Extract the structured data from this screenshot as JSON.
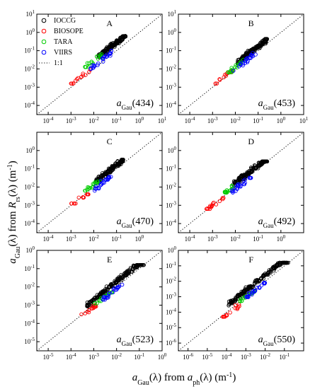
{
  "figure": {
    "xlabel": {
      "prefix": "a",
      "sub1": "Gau",
      "mid": "(λ) from ",
      "a2": "a",
      "sub2": "ph",
      "suffix": "(λ) (m",
      "exp": "-1",
      "end": ")"
    },
    "ylabel": {
      "prefix": "a",
      "sub1": "Gau",
      "mid": "(λ) from ",
      "R": "R",
      "sub2": "rs",
      "suffix": "(λ) (m",
      "exp": "-1",
      "end": ")"
    }
  },
  "legend": {
    "entries": [
      {
        "label": "IOCCG",
        "color": "#000000",
        "marker": "circle"
      },
      {
        "label": "BIOSOPE",
        "color": "#ff0000",
        "marker": "circle"
      },
      {
        "label": "TARA",
        "color": "#00cc00",
        "marker": "circle"
      },
      {
        "label": "VIIRS",
        "color": "#0000ff",
        "marker": "circle"
      },
      {
        "label": "1:1",
        "color": "#000000",
        "marker": "dotted-line"
      }
    ]
  },
  "chart_data": [
    {
      "type": "scatter",
      "panel": "A",
      "wavelength": "434",
      "xscale": "log",
      "yscale": "log",
      "xlim": [
        -4.5,
        1
      ],
      "ylim": [
        -4.5,
        1
      ],
      "xticks": [
        "10-4",
        "10-3",
        "10-2",
        "10-1",
        "100",
        "101"
      ],
      "yticks": [
        "10-4",
        "10-3",
        "10-2",
        "10-1",
        "100",
        "101"
      ],
      "series": [
        {
          "name": "IOCCG",
          "center": [
            -0.9,
            -0.45
          ],
          "x_range": [
            -1.8,
            -0.6
          ],
          "y_range": [
            -1.6,
            -0.2
          ],
          "n": 140
        },
        {
          "name": "BIOSOPE",
          "center": [
            -2.6,
            -2.45
          ],
          "x_range": [
            -3.0,
            -2.1
          ],
          "y_range": [
            -2.8,
            -2.0
          ],
          "n": 14
        },
        {
          "name": "TARA",
          "center": [
            -2.0,
            -1.55
          ],
          "x_range": [
            -2.4,
            -1.6
          ],
          "y_range": [
            -1.9,
            -1.2
          ],
          "n": 18
        },
        {
          "name": "VIIRS",
          "center": [
            -1.6,
            -1.45
          ],
          "x_range": [
            -2.2,
            -1.2
          ],
          "y_range": [
            -2.0,
            -1.0
          ],
          "n": 24
        }
      ]
    },
    {
      "type": "scatter",
      "panel": "B",
      "wavelength": "453",
      "xscale": "log",
      "yscale": "log",
      "xlim": [
        -4.5,
        1
      ],
      "ylim": [
        -4.5,
        1
      ],
      "xticks": [
        "10-4",
        "10-3",
        "10-2",
        "10-1",
        "100",
        "101"
      ],
      "yticks": [
        "10-4",
        "10-3",
        "10-2",
        "10-1",
        "100",
        "101"
      ],
      "series": [
        {
          "name": "IOCCG",
          "center": [
            -1.0,
            -0.75
          ],
          "x_range": [
            -1.9,
            -0.6
          ],
          "y_range": [
            -1.7,
            -0.3
          ],
          "n": 140
        },
        {
          "name": "BIOSOPE",
          "center": [
            -2.55,
            -2.5
          ],
          "x_range": [
            -2.9,
            -2.1
          ],
          "y_range": [
            -2.8,
            -2.1
          ],
          "n": 14
        },
        {
          "name": "TARA",
          "center": [
            -2.0,
            -1.9
          ],
          "x_range": [
            -2.4,
            -1.6
          ],
          "y_range": [
            -2.2,
            -1.5
          ],
          "n": 18
        },
        {
          "name": "VIIRS",
          "center": [
            -1.6,
            -1.6
          ],
          "x_range": [
            -2.1,
            -1.1
          ],
          "y_range": [
            -2.1,
            -1.1
          ],
          "n": 24
        }
      ]
    },
    {
      "type": "scatter",
      "panel": "C",
      "wavelength": "470",
      "xscale": "log",
      "yscale": "log",
      "xlim": [
        -4.5,
        1
      ],
      "ylim": [
        -4.5,
        1
      ],
      "xticks": [
        "10-4",
        "10-3",
        "10-2",
        "10-1",
        "100"
      ],
      "yticks": [
        "10-4",
        "10-3",
        "10-2",
        "10-1",
        "100"
      ],
      "series": [
        {
          "name": "IOCCG",
          "center": [
            -1.05,
            -0.85
          ],
          "x_range": [
            -1.9,
            -0.7
          ],
          "y_range": [
            -1.8,
            -0.5
          ],
          "n": 140
        },
        {
          "name": "BIOSOPE",
          "center": [
            -2.6,
            -2.7
          ],
          "x_range": [
            -3.0,
            -2.2
          ],
          "y_range": [
            -2.9,
            -2.4
          ],
          "n": 14
        },
        {
          "name": "TARA",
          "center": [
            -2.05,
            -1.95
          ],
          "x_range": [
            -2.4,
            -1.7
          ],
          "y_range": [
            -2.2,
            -1.7
          ],
          "n": 18
        },
        {
          "name": "VIIRS",
          "center": [
            -1.6,
            -1.75
          ],
          "x_range": [
            -2.0,
            -1.2
          ],
          "y_range": [
            -2.2,
            -1.3
          ],
          "n": 24
        }
      ]
    },
    {
      "type": "scatter",
      "panel": "D",
      "wavelength": "492",
      "xscale": "log",
      "yscale": "log",
      "xlim": [
        -4.5,
        1
      ],
      "ylim": [
        -4.5,
        1
      ],
      "xticks": [
        "10-4",
        "10-3",
        "10-2",
        "10-1",
        "100"
      ],
      "yticks": [
        "10-4",
        "10-3",
        "10-2",
        "10-1",
        "100"
      ],
      "series": [
        {
          "name": "IOCCG",
          "center": [
            -1.1,
            -0.9
          ],
          "x_range": [
            -2.1,
            -0.6
          ],
          "y_range": [
            -2.3,
            -0.6
          ],
          "n": 150
        },
        {
          "name": "BIOSOPE",
          "center": [
            -2.9,
            -2.9
          ],
          "x_range": [
            -3.3,
            -2.5
          ],
          "y_range": [
            -3.2,
            -2.6
          ],
          "n": 16
        },
        {
          "name": "TARA",
          "center": [
            -2.15,
            -2.05
          ],
          "x_range": [
            -2.5,
            -1.8
          ],
          "y_range": [
            -2.3,
            -1.8
          ],
          "n": 18
        },
        {
          "name": "VIIRS",
          "center": [
            -1.8,
            -1.9
          ],
          "x_range": [
            -2.2,
            -1.3
          ],
          "y_range": [
            -2.3,
            -1.5
          ],
          "n": 24
        }
      ]
    },
    {
      "type": "scatter",
      "panel": "E",
      "wavelength": "523",
      "xscale": "log",
      "yscale": "log",
      "xlim": [
        -5.5,
        0
      ],
      "ylim": [
        -5.5,
        0
      ],
      "xticks": [
        "10-5",
        "10-4",
        "10-3",
        "10-2",
        "10-1",
        "100"
      ],
      "yticks": [
        "10-5",
        "10-4",
        "10-3",
        "10-2",
        "10-1",
        "100"
      ],
      "series": [
        {
          "name": "IOCCG",
          "center": [
            -1.7,
            -1.4
          ],
          "x_range": [
            -3.3,
            -0.8
          ],
          "y_range": [
            -3.3,
            -0.8
          ],
          "n": 170
        },
        {
          "name": "BIOSOPE",
          "center": [
            -3.3,
            -3.4
          ],
          "x_range": [
            -3.7,
            -2.9
          ],
          "y_range": [
            -3.7,
            -3.0
          ],
          "n": 16
        },
        {
          "name": "TARA",
          "center": [
            -2.6,
            -2.6
          ],
          "x_range": [
            -3.0,
            -2.2
          ],
          "y_range": [
            -2.9,
            -2.3
          ],
          "n": 16
        },
        {
          "name": "VIIRS",
          "center": [
            -2.2,
            -2.3
          ],
          "x_range": [
            -2.6,
            -1.7
          ],
          "y_range": [
            -2.7,
            -1.8
          ],
          "n": 24
        }
      ]
    },
    {
      "type": "scatter",
      "panel": "F",
      "wavelength": "550",
      "xscale": "log",
      "yscale": "log",
      "xlim": [
        -6.5,
        0
      ],
      "ylim": [
        -6.5,
        0
      ],
      "xticks": [
        "10-6",
        "10-5",
        "10-4",
        "10-3",
        "10-2",
        "10-1"
      ],
      "yticks": [
        "10-6",
        "10-5",
        "10-4",
        "10-3",
        "10-2",
        "10-1",
        "100"
      ],
      "series": [
        {
          "name": "IOCCG",
          "center": [
            -2.0,
            -1.6
          ],
          "x_range": [
            -3.9,
            -0.8
          ],
          "y_range": [
            -3.9,
            -0.8
          ],
          "n": 170
        },
        {
          "name": "BIOSOPE",
          "center": [
            -3.7,
            -3.9
          ],
          "x_range": [
            -4.2,
            -3.3
          ],
          "y_range": [
            -4.3,
            -3.4
          ],
          "n": 16
        },
        {
          "name": "TARA",
          "center": [
            -2.9,
            -2.9
          ],
          "x_range": [
            -3.3,
            -2.5
          ],
          "y_range": [
            -3.3,
            -2.6
          ],
          "n": 16
        },
        {
          "name": "VIIRS",
          "center": [
            -2.5,
            -2.6
          ],
          "x_range": [
            -3.0,
            -2.0
          ],
          "y_range": [
            -3.1,
            -2.1
          ],
          "n": 24
        }
      ]
    }
  ]
}
